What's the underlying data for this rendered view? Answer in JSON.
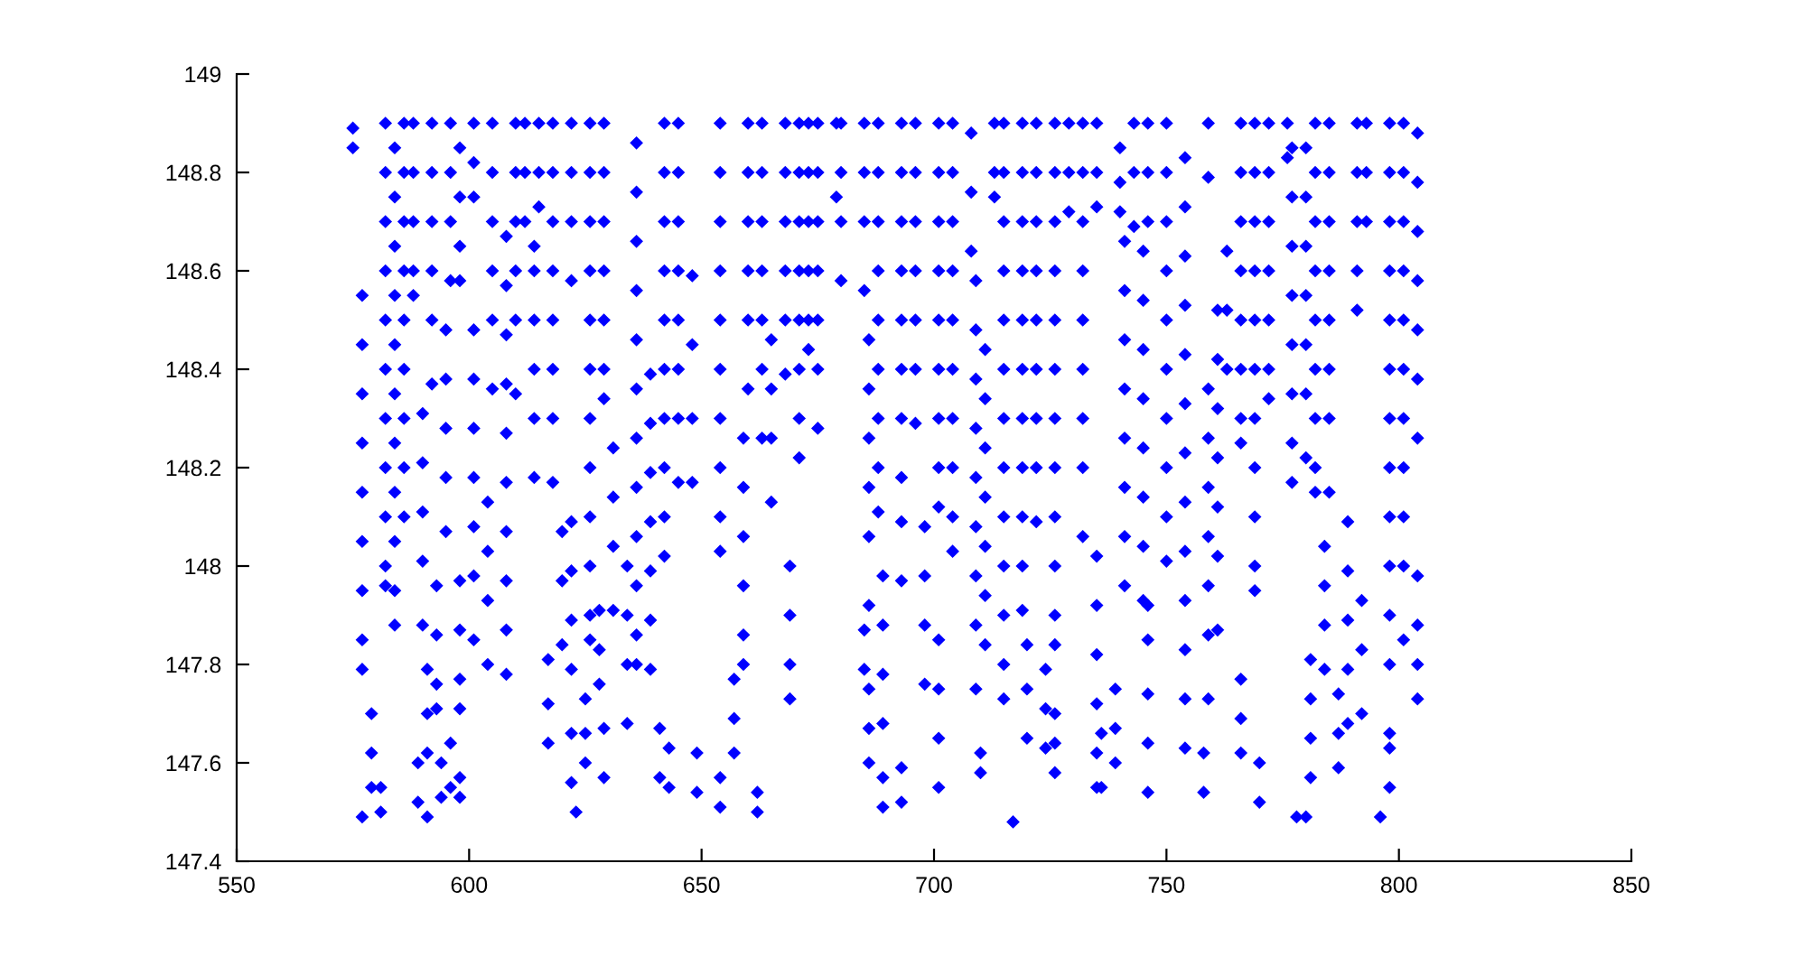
{
  "chart_data": {
    "type": "scatter",
    "marker": "diamond",
    "xlim": [
      550,
      850
    ],
    "ylim": [
      147.4,
      149
    ],
    "xticks": [
      550,
      600,
      650,
      700,
      750,
      800,
      850
    ],
    "yticks": [
      147.4,
      147.6,
      147.8,
      148,
      148.2,
      148.4,
      148.6,
      148.8,
      149
    ],
    "series": [
      {
        "color": "#0000ff",
        "x": [
          575,
          575,
          577,
          577,
          577,
          577,
          577,
          577,
          577,
          577,
          577,
          577,
          579,
          579,
          579,
          581,
          581,
          582,
          582,
          582,
          582,
          582,
          582,
          582,
          582,
          582,
          582,
          582,
          584,
          584,
          584,
          584,
          584,
          584,
          584,
          584,
          584,
          584,
          584,
          586,
          586,
          586,
          586,
          586,
          586,
          586,
          586,
          586,
          588,
          588,
          588,
          588,
          588,
          590,
          590,
          590,
          590,
          590,
          589,
          589,
          591,
          591,
          591,
          591,
          592,
          592,
          592,
          592,
          592,
          592,
          593,
          593,
          593,
          593,
          595,
          595,
          595,
          595,
          595,
          594,
          594,
          596,
          596,
          596,
          596,
          596,
          596,
          598,
          598,
          598,
          598,
          598,
          598,
          598,
          598,
          598,
          598,
          601,
          601,
          601,
          601,
          601,
          601,
          601,
          601,
          601,
          601,
          605,
          605,
          605,
          605,
          605,
          605,
          604,
          604,
          604,
          604,
          608,
          608,
          608,
          608,
          608,
          608,
          608,
          608,
          608,
          608,
          610,
          610,
          610,
          610,
          610,
          610
        ],
        "values": [
          148.89,
          148.85,
          148.55,
          148.45,
          148.35,
          148.25,
          148.15,
          148.05,
          147.95,
          147.85,
          147.79,
          147.49,
          147.7,
          147.62,
          147.55,
          147.55,
          147.5,
          148.9,
          148.8,
          148.7,
          148.6,
          148.5,
          148.4,
          148.3,
          148.2,
          148.1,
          148.0,
          147.96,
          148.85,
          148.75,
          148.65,
          148.55,
          148.45,
          148.35,
          148.25,
          148.15,
          148.05,
          147.95,
          147.88,
          148.9,
          148.8,
          148.7,
          148.6,
          148.5,
          148.4,
          148.3,
          148.2,
          148.1,
          148.9,
          148.8,
          148.7,
          148.6,
          148.55,
          148.31,
          148.21,
          148.11,
          148.01,
          147.88,
          147.6,
          147.52,
          147.79,
          147.7,
          147.62,
          147.49,
          148.9,
          148.8,
          148.7,
          148.6,
          148.5,
          148.37,
          147.96,
          147.86,
          147.76,
          147.71,
          148.48,
          148.38,
          148.28,
          148.18,
          148.07,
          147.6,
          147.53,
          148.9,
          148.8,
          148.7,
          148.58,
          147.64,
          147.55,
          148.85,
          148.75,
          148.65,
          148.58,
          147.97,
          147.87,
          147.77,
          147.71,
          147.57,
          147.53,
          148.9,
          148.82,
          148.75,
          148.48,
          148.38,
          148.28,
          148.18,
          148.08,
          147.98,
          147.85,
          148.9,
          148.8,
          148.7,
          148.6,
          148.5,
          148.36,
          148.13,
          148.03,
          147.93,
          147.8,
          148.67,
          148.57,
          148.47,
          148.37,
          148.27,
          148.17,
          148.07,
          147.97,
          147.87,
          147.78,
          148.9,
          148.8,
          148.7,
          148.6,
          148.5,
          148.35
        ]
      },
      {
        "color": "#0000ff",
        "x": [
          612,
          612,
          612,
          614,
          614,
          614,
          614,
          614,
          614,
          615,
          615,
          615,
          617,
          617,
          617,
          618,
          618,
          618,
          618,
          618,
          618,
          618,
          618,
          620,
          620,
          620,
          622,
          622,
          622,
          622,
          622,
          622,
          622,
          622,
          622,
          622,
          623,
          625,
          625,
          625,
          626,
          626,
          626,
          626,
          626,
          626,
          626,
          626,
          626,
          626,
          626,
          626,
          628,
          628,
          628,
          629,
          629,
          629,
          629,
          629,
          629,
          629,
          629,
          629,
          631,
          631,
          631,
          631,
          634,
          634,
          634,
          634,
          636,
          636,
          636,
          636,
          636,
          636,
          636,
          636,
          636,
          636,
          636,
          636,
          639,
          639,
          639,
          639,
          639,
          639,
          639,
          641,
          641,
          642,
          642,
          642,
          642,
          642,
          642,
          642,
          642,
          642,
          642,
          643,
          643,
          645,
          645,
          645,
          645,
          645,
          645,
          645,
          645,
          648,
          648,
          648,
          648,
          649,
          649
        ],
        "values": [
          148.9,
          148.8,
          148.7,
          148.65,
          148.6,
          148.5,
          148.4,
          148.3,
          148.18,
          148.9,
          148.8,
          148.73,
          147.81,
          147.72,
          147.64,
          148.9,
          148.8,
          148.7,
          148.6,
          148.5,
          148.4,
          148.3,
          148.17,
          148.07,
          147.97,
          147.84,
          148.9,
          148.8,
          148.7,
          148.58,
          147.66,
          147.56,
          148.09,
          147.99,
          147.89,
          147.79,
          147.5,
          147.73,
          147.66,
          147.6,
          148.9,
          148.8,
          148.7,
          148.6,
          148.5,
          148.4,
          148.3,
          148.2,
          148.1,
          148.0,
          147.9,
          147.85,
          147.91,
          147.83,
          147.76,
          147.67,
          147.57,
          148.9,
          148.8,
          148.7,
          148.6,
          148.5,
          148.4,
          148.34,
          148.24,
          148.14,
          148.04,
          147.91,
          148.0,
          147.9,
          147.8,
          147.68,
          148.86,
          148.76,
          148.66,
          148.56,
          148.46,
          148.36,
          148.26,
          148.16,
          148.06,
          147.96,
          147.86,
          147.8,
          148.39,
          148.29,
          148.19,
          148.09,
          147.99,
          147.89,
          147.79,
          147.67,
          147.57,
          148.9,
          148.8,
          148.7,
          148.6,
          148.5,
          148.4,
          148.3,
          148.2,
          148.1,
          148.02,
          147.63,
          147.55,
          148.9,
          148.8,
          148.7,
          148.6,
          148.5,
          148.4,
          148.3,
          148.17,
          148.59,
          148.45,
          148.3,
          148.17,
          147.62,
          147.54
        ]
      },
      {
        "color": "#0000ff",
        "x": [
          654,
          654,
          654,
          654,
          654,
          654,
          654,
          654,
          654,
          654,
          654,
          654,
          657,
          657,
          657,
          660,
          660,
          660,
          660,
          660,
          660,
          659,
          659,
          659,
          659,
          659,
          659,
          662,
          662,
          663,
          663,
          663,
          663,
          663,
          663,
          663,
          665,
          665,
          665,
          665,
          668,
          668,
          668,
          668,
          668,
          668,
          669,
          669,
          669,
          669,
          671,
          671,
          671,
          671,
          671,
          671,
          671,
          671,
          673,
          673,
          673,
          673,
          673,
          673,
          675,
          675,
          675,
          675,
          675,
          675,
          675,
          679,
          679,
          680,
          680,
          680,
          680,
          685,
          685,
          685,
          685,
          686,
          686,
          686,
          686,
          686,
          686,
          685,
          685,
          686,
          686,
          686,
          688,
          688,
          688,
          688,
          688,
          688,
          688,
          688,
          688,
          689,
          689,
          689,
          689,
          689,
          689
        ],
        "values": [
          148.9,
          148.8,
          148.7,
          148.6,
          148.5,
          148.4,
          148.3,
          148.2,
          148.1,
          148.03,
          147.57,
          147.51,
          147.77,
          147.69,
          147.62,
          148.9,
          148.8,
          148.7,
          148.6,
          148.5,
          148.36,
          148.26,
          148.16,
          148.06,
          147.96,
          147.86,
          147.8,
          147.54,
          147.5,
          148.9,
          148.8,
          148.7,
          148.6,
          148.5,
          148.4,
          148.26,
          148.46,
          148.36,
          148.26,
          148.13,
          148.9,
          148.8,
          148.7,
          148.6,
          148.5,
          148.39,
          148.0,
          147.9,
          147.8,
          147.73,
          148.9,
          148.8,
          148.7,
          148.6,
          148.5,
          148.4,
          148.3,
          148.22,
          148.9,
          148.8,
          148.7,
          148.6,
          148.5,
          148.44,
          148.9,
          148.8,
          148.7,
          148.6,
          148.5,
          148.4,
          148.28,
          148.9,
          148.75,
          148.9,
          148.8,
          148.7,
          148.58,
          148.9,
          148.8,
          148.7,
          148.56,
          148.46,
          148.36,
          148.26,
          148.16,
          148.06,
          147.92,
          147.87,
          147.79,
          147.75,
          147.67,
          147.6,
          148.9,
          148.8,
          148.7,
          148.6,
          148.5,
          148.4,
          148.3,
          148.2,
          148.11,
          147.98,
          147.88,
          147.78,
          147.68,
          147.57,
          147.51
        ]
      },
      {
        "color": "#0000ff",
        "x": [
          693,
          693,
          693,
          693,
          693,
          693,
          693,
          693,
          693,
          693,
          693,
          693,
          696,
          696,
          696,
          696,
          696,
          696,
          696,
          698,
          698,
          698,
          698,
          701,
          701,
          701,
          701,
          701,
          701,
          701,
          701,
          701,
          701,
          701,
          701,
          701,
          704,
          704,
          704,
          704,
          704,
          704,
          704,
          704,
          704,
          704,
          708,
          708,
          708,
          709,
          709,
          709,
          709,
          709,
          709,
          709,
          709,
          709,
          710,
          710,
          711,
          711,
          711,
          711,
          711,
          711,
          711,
          713,
          713,
          713,
          715,
          715,
          715,
          715,
          715,
          715,
          715,
          715,
          715,
          715,
          715,
          715,
          715,
          717,
          719,
          719,
          719,
          719,
          719,
          719,
          719,
          719,
          719,
          719,
          719,
          720,
          720,
          720,
          722,
          722,
          722,
          722,
          722,
          722,
          722,
          722,
          722,
          724,
          724,
          724,
          726,
          726,
          726,
          726,
          726,
          726,
          726,
          726,
          726,
          726,
          726,
          726,
          726,
          726,
          726
        ],
        "values": [
          148.9,
          148.8,
          148.7,
          148.6,
          148.5,
          148.4,
          148.3,
          148.18,
          147.59,
          147.52,
          148.09,
          147.97,
          148.9,
          148.8,
          148.7,
          148.6,
          148.5,
          148.4,
          148.29,
          148.08,
          147.98,
          147.88,
          147.76,
          148.9,
          148.8,
          148.7,
          148.6,
          148.5,
          148.4,
          148.3,
          148.2,
          148.12,
          147.85,
          147.75,
          147.65,
          147.55,
          148.9,
          148.8,
          148.7,
          148.6,
          148.5,
          148.4,
          148.3,
          148.2,
          148.1,
          148.03,
          148.88,
          148.76,
          148.64,
          148.58,
          148.48,
          148.38,
          148.28,
          148.18,
          148.08,
          147.98,
          147.88,
          147.75,
          147.62,
          147.58,
          148.44,
          148.34,
          148.24,
          148.14,
          148.04,
          147.94,
          147.84,
          148.9,
          148.8,
          148.75,
          148.9,
          148.8,
          148.7,
          148.6,
          148.5,
          148.4,
          148.3,
          148.2,
          148.1,
          148.0,
          147.9,
          147.8,
          147.73,
          147.48,
          148.9,
          148.8,
          148.7,
          148.6,
          148.5,
          148.4,
          148.3,
          148.2,
          148.1,
          148.0,
          147.91,
          147.84,
          147.75,
          147.65,
          148.9,
          148.8,
          148.7,
          148.6,
          148.5,
          148.4,
          148.3,
          148.2,
          148.09,
          147.79,
          147.71,
          147.63,
          148.9,
          148.8,
          148.7,
          148.6,
          148.5,
          148.4,
          148.3,
          148.2,
          148.1,
          148.0,
          147.9,
          147.84,
          147.7,
          147.64,
          147.58
        ]
      },
      {
        "color": "#0000ff",
        "x": [
          729,
          729,
          729,
          732,
          732,
          732,
          732,
          732,
          732,
          732,
          732,
          732,
          735,
          735,
          735,
          735,
          735,
          735,
          735,
          735,
          735,
          736,
          736,
          739,
          739,
          739,
          740,
          740,
          740,
          741,
          741,
          741,
          741,
          741,
          741,
          741,
          741,
          743,
          743,
          743,
          745,
          745,
          745,
          745,
          745,
          745,
          745,
          745,
          746,
          746,
          746,
          746,
          746,
          746,
          746,
          746,
          750,
          750,
          750,
          750,
          750,
          750,
          750,
          750,
          750,
          750,
          754,
          754,
          754,
          754,
          754,
          754,
          754,
          754,
          754,
          754,
          754,
          754,
          754,
          758,
          758,
          759,
          759,
          759,
          759,
          759,
          759,
          759,
          759,
          759,
          761,
          761,
          761,
          761,
          761,
          761,
          761,
          763,
          763,
          763,
          766,
          766,
          766,
          766,
          766,
          766,
          766,
          766,
          766,
          766,
          766
        ],
        "values": [
          148.9,
          148.8,
          148.72,
          148.9,
          148.8,
          148.7,
          148.6,
          148.5,
          148.4,
          148.3,
          148.2,
          148.06,
          148.9,
          148.8,
          148.73,
          148.02,
          147.92,
          147.82,
          147.72,
          147.62,
          147.55,
          147.66,
          147.55,
          147.75,
          147.67,
          147.6,
          148.85,
          148.78,
          148.72,
          148.66,
          148.56,
          148.46,
          148.36,
          148.26,
          148.16,
          148.06,
          147.96,
          148.9,
          148.8,
          148.69,
          148.64,
          148.54,
          148.44,
          148.34,
          148.24,
          148.14,
          148.04,
          147.93,
          147.74,
          147.64,
          147.54,
          148.9,
          148.8,
          148.7,
          147.92,
          147.85,
          148.9,
          148.8,
          148.7,
          148.6,
          148.5,
          148.4,
          148.3,
          148.2,
          148.1,
          148.01,
          148.83,
          148.73,
          148.63,
          148.53,
          148.43,
          148.33,
          148.23,
          148.13,
          148.03,
          147.93,
          147.83,
          147.73,
          147.63,
          147.62,
          147.54,
          148.9,
          148.79,
          148.36,
          148.26,
          148.16,
          148.06,
          147.96,
          147.86,
          147.73,
          148.52,
          148.42,
          148.32,
          148.22,
          148.12,
          148.02,
          147.87,
          148.64,
          148.52,
          148.4,
          148.9,
          148.8,
          148.7,
          148.6,
          148.5,
          148.4,
          148.3,
          148.25,
          147.77,
          147.69,
          147.62
        ]
      },
      {
        "color": "#0000ff",
        "x": [
          769,
          769,
          769,
          769,
          769,
          769,
          769,
          769,
          769,
          769,
          769,
          770,
          770,
          772,
          772,
          772,
          772,
          772,
          772,
          772,
          776,
          776,
          777,
          777,
          777,
          777,
          777,
          777,
          777,
          777,
          778,
          780,
          780,
          780,
          780,
          780,
          780,
          780,
          780,
          781,
          781,
          781,
          781,
          782,
          782,
          782,
          782,
          782,
          782,
          782,
          782,
          782,
          784,
          784,
          784,
          784,
          785,
          785,
          785,
          785,
          785,
          785,
          785,
          785,
          787,
          787,
          787,
          789,
          789,
          789,
          789,
          789,
          792,
          792,
          792,
          791,
          791,
          791,
          791,
          791,
          793,
          793,
          793,
          796,
          798,
          798,
          798,
          798,
          798,
          798,
          798,
          798,
          798,
          798,
          798,
          798,
          798,
          798,
          798,
          801,
          801,
          801,
          801,
          801,
          801,
          801,
          801,
          801,
          801,
          801,
          804,
          804,
          804,
          804,
          804,
          804,
          804,
          804,
          804,
          804,
          804
        ],
        "values": [
          148.9,
          148.8,
          148.7,
          148.6,
          148.5,
          148.4,
          148.3,
          148.2,
          148.1,
          148.0,
          147.95,
          147.6,
          147.52,
          148.9,
          148.8,
          148.7,
          148.6,
          148.5,
          148.4,
          148.34,
          148.9,
          148.83,
          148.85,
          148.75,
          148.65,
          148.55,
          148.45,
          148.35,
          148.25,
          148.17,
          147.49,
          147.49,
          148.85,
          148.75,
          148.65,
          148.55,
          148.45,
          148.35,
          148.22,
          147.81,
          147.73,
          147.65,
          147.57,
          148.9,
          148.8,
          148.7,
          148.6,
          148.5,
          148.4,
          148.3,
          148.2,
          148.15,
          148.04,
          147.96,
          147.88,
          147.79,
          148.9,
          148.8,
          148.7,
          148.6,
          148.5,
          148.4,
          148.3,
          148.15,
          147.74,
          147.66,
          147.59,
          148.09,
          147.99,
          147.89,
          147.79,
          147.68,
          147.93,
          147.83,
          147.7,
          148.9,
          148.8,
          148.7,
          148.6,
          148.52,
          148.9,
          148.8,
          148.7,
          147.49,
          147.63,
          147.55,
          148.9,
          148.8,
          148.7,
          148.6,
          148.5,
          148.4,
          148.3,
          148.2,
          148.1,
          148.0,
          147.9,
          147.8,
          147.66,
          148.9,
          148.8,
          148.7,
          148.6,
          148.5,
          148.4,
          148.3,
          148.2,
          148.1,
          148.0,
          147.85,
          148.88,
          148.78,
          148.68,
          148.58,
          148.48,
          148.38,
          148.26,
          147.98,
          147.88,
          147.8,
          147.73
        ]
      }
    ]
  }
}
